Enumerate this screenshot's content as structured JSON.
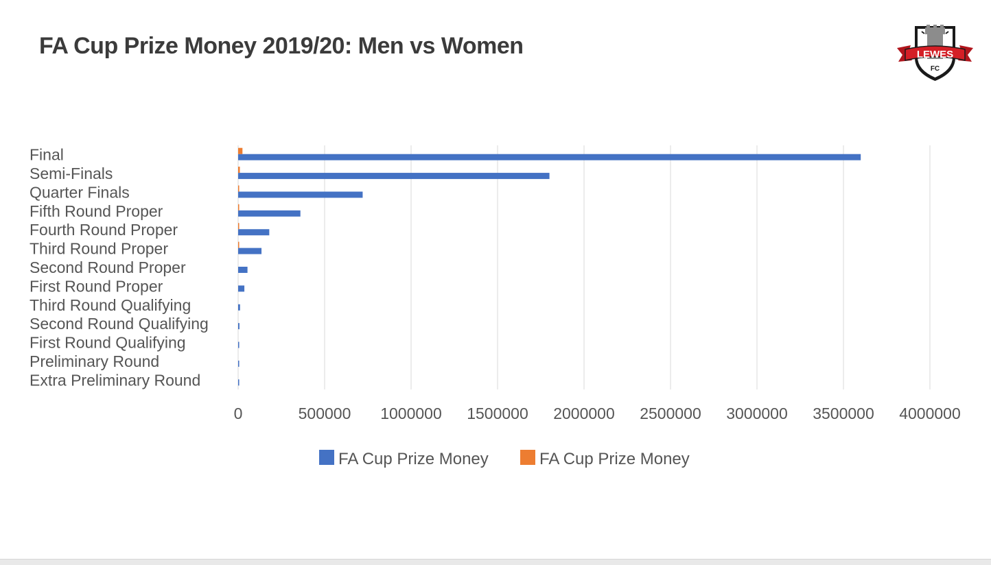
{
  "page": {
    "title": "FA Cup Prize Money 2019/20: Men vs Women",
    "logo": {
      "top_text": "LEWES",
      "bottom_text": "FC"
    }
  },
  "chart_data": {
    "type": "bar",
    "orientation": "horizontal",
    "title": "FA Cup Prize Money 2019/20: Men vs Women",
    "xlabel": "",
    "ylabel": "",
    "categories": [
      "Final",
      "Semi-Finals",
      "Quarter Finals",
      "Fifth Round Proper",
      "Fourth Round Proper",
      "Third Round Proper",
      "Second Round Proper",
      "First Round Proper",
      "Third Round Qualifying",
      "Second Round Qualifying",
      "First Round Qualifying",
      "Preliminary Round",
      "Extra Preliminary Round"
    ],
    "series": [
      {
        "name": "FA Cup Prize Money",
        "color": "#4472c4",
        "values": [
          3600000,
          1800000,
          720000,
          360000,
          180000,
          135000,
          54000,
          36000,
          11000,
          7500,
          3000,
          2000,
          1000
        ]
      },
      {
        "name": "FA Cup Prize Money",
        "color": "#ed7d31",
        "values": [
          25000,
          10000,
          5000,
          3000,
          2000,
          1000,
          0,
          0,
          0,
          0,
          0,
          0,
          0
        ]
      }
    ],
    "xlim": [
      0,
      4000000
    ],
    "xticks": [
      "0",
      "500000",
      "1000000",
      "1500000",
      "2000000",
      "2500000",
      "3000000",
      "3500000",
      "4000000"
    ],
    "grid": true,
    "legend_position": "bottom"
  }
}
